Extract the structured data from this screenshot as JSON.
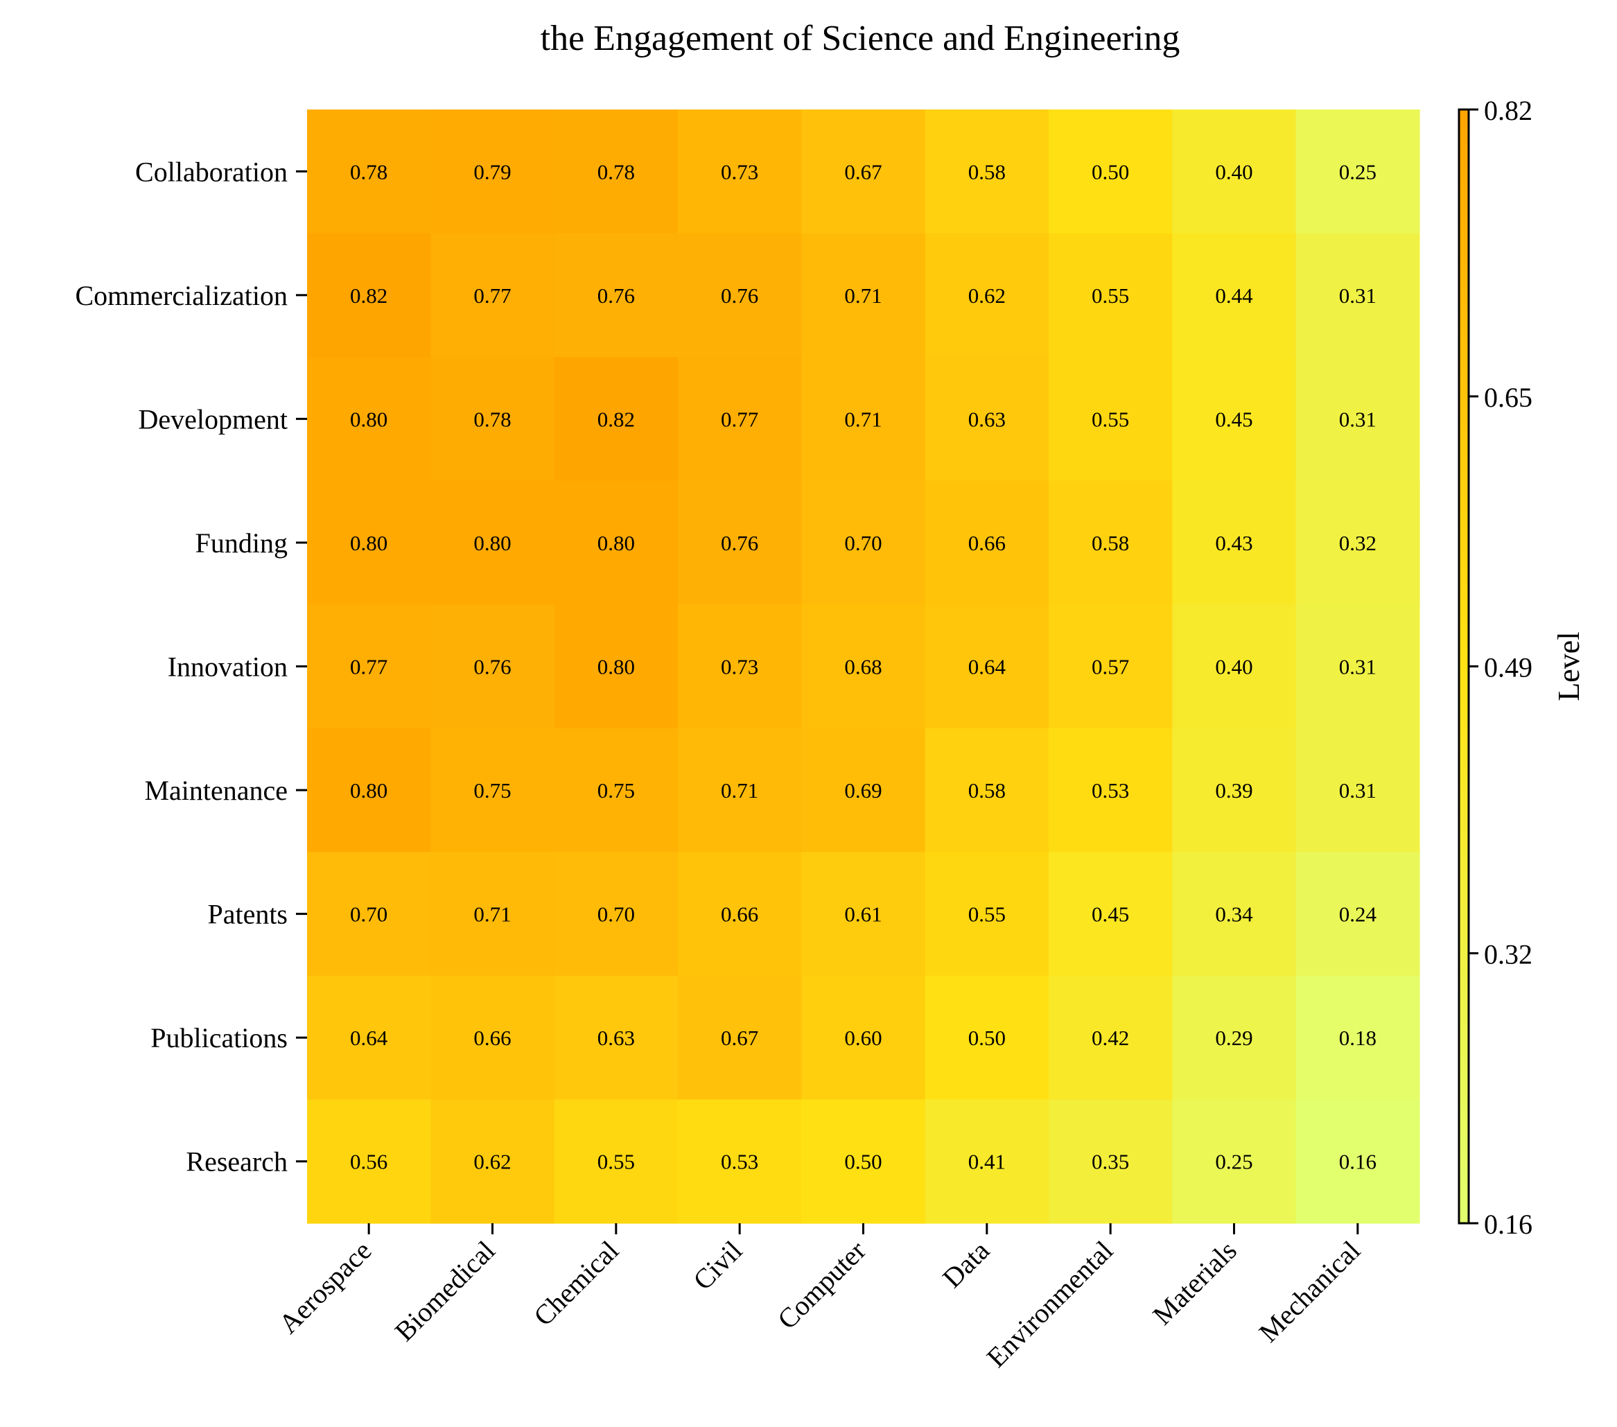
{
  "chart_data": {
    "type": "heatmap",
    "title": "the Engagement of Science and Engineering",
    "x_categories": [
      "Aerospace",
      "Biomedical",
      "Chemical",
      "Civil",
      "Computer",
      "Data",
      "Environmental",
      "Materials",
      "Mechanical"
    ],
    "y_categories": [
      "Collaboration",
      "Commercialization",
      "Development",
      "Funding",
      "Innovation",
      "Maintenance",
      "Patents",
      "Publications",
      "Research"
    ],
    "values": [
      [
        0.78,
        0.79,
        0.78,
        0.73,
        0.67,
        0.58,
        0.5,
        0.4,
        0.25
      ],
      [
        0.82,
        0.77,
        0.76,
        0.76,
        0.71,
        0.62,
        0.55,
        0.44,
        0.31
      ],
      [
        0.8,
        0.78,
        0.82,
        0.77,
        0.71,
        0.63,
        0.55,
        0.45,
        0.31
      ],
      [
        0.8,
        0.8,
        0.8,
        0.76,
        0.7,
        0.66,
        0.58,
        0.43,
        0.32
      ],
      [
        0.77,
        0.76,
        0.8,
        0.73,
        0.68,
        0.64,
        0.57,
        0.4,
        0.31
      ],
      [
        0.8,
        0.75,
        0.75,
        0.71,
        0.69,
        0.58,
        0.53,
        0.39,
        0.31
      ],
      [
        0.7,
        0.71,
        0.7,
        0.66,
        0.61,
        0.55,
        0.45,
        0.34,
        0.24
      ],
      [
        0.64,
        0.66,
        0.63,
        0.67,
        0.6,
        0.5,
        0.42,
        0.29,
        0.18
      ],
      [
        0.56,
        0.62,
        0.55,
        0.53,
        0.5,
        0.41,
        0.35,
        0.25,
        0.16
      ]
    ],
    "value_format": "0.00",
    "colorbar": {
      "label": "Level",
      "min": 0.16,
      "max": 0.82,
      "ticks": [
        "0.16",
        "0.32",
        "0.49",
        "0.65",
        "0.82"
      ],
      "colors": [
        "#e2ff6e",
        "#ffe214",
        "#ffa500"
      ]
    },
    "grid": false
  }
}
